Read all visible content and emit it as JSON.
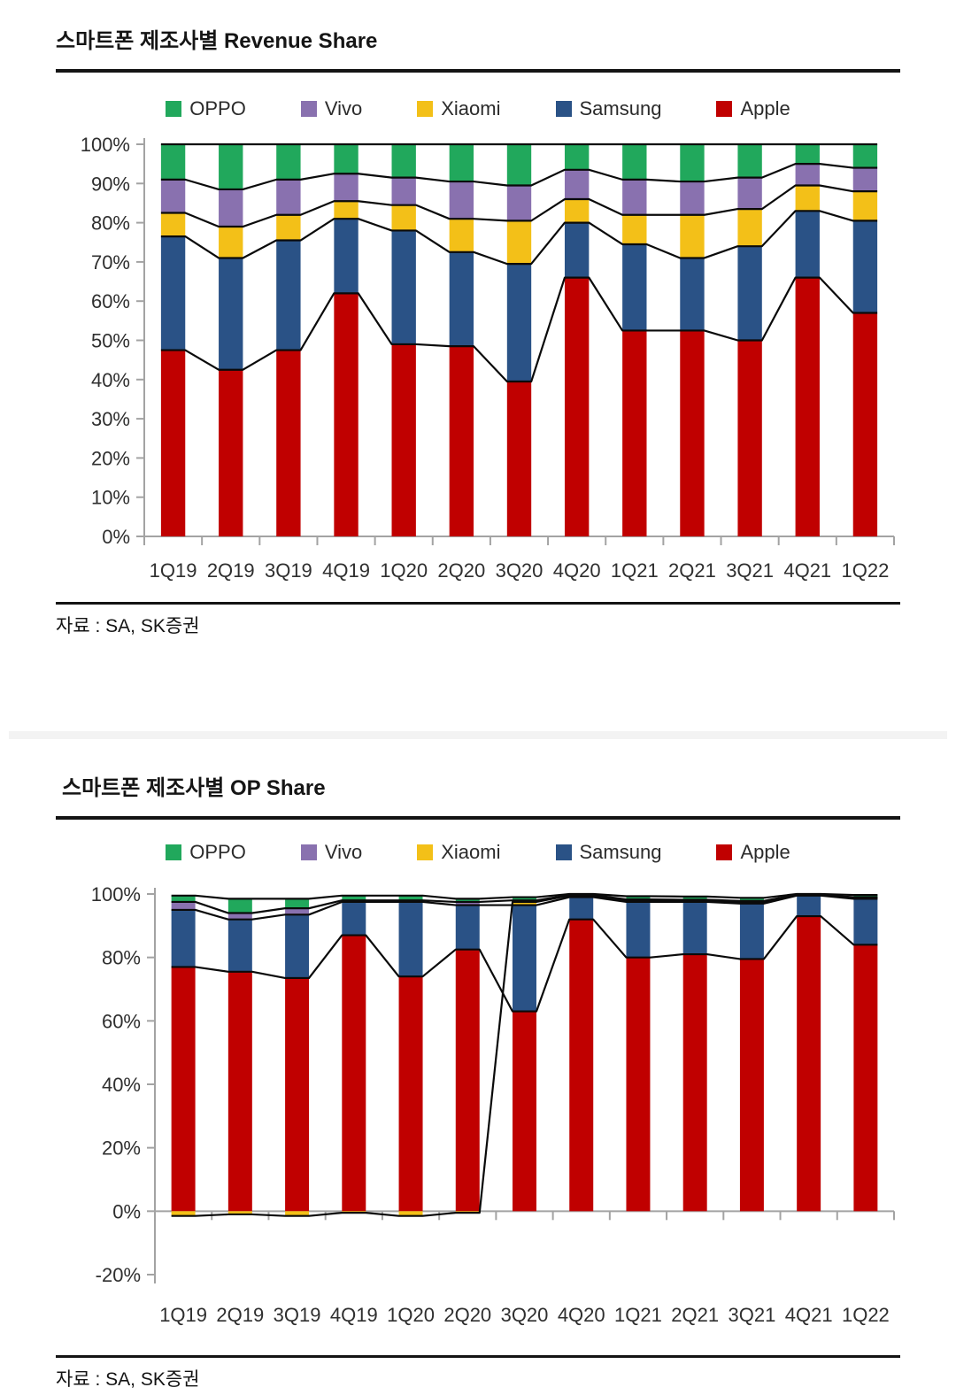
{
  "chart_data": [
    {
      "type": "bar",
      "stacked": true,
      "percent_stacked": true,
      "title": "스마트폰 제조사별 Revenue Share",
      "source": "자료 : SA, SK증권",
      "categories": [
        "1Q19",
        "2Q19",
        "3Q19",
        "4Q19",
        "1Q20",
        "2Q20",
        "3Q20",
        "4Q20",
        "1Q21",
        "2Q21",
        "3Q21",
        "4Q21",
        "1Q22"
      ],
      "stack_order": [
        "Apple",
        "Samsung",
        "Xiaomi",
        "Vivo",
        "OPPO"
      ],
      "legend": [
        {
          "name": "OPPO",
          "color": "#21A85C"
        },
        {
          "name": "Vivo",
          "color": "#8971AF"
        },
        {
          "name": "Xiaomi",
          "color": "#F3C018"
        },
        {
          "name": "Samsung",
          "color": "#2A5286"
        },
        {
          "name": "Apple",
          "color": "#C00000"
        }
      ],
      "series": [
        {
          "name": "Apple",
          "color": "#C00000",
          "values": [
            47.5,
            42.5,
            47.5,
            62,
            49,
            48.5,
            39.5,
            66,
            52.5,
            52.5,
            50,
            66,
            57
          ]
        },
        {
          "name": "Samsung",
          "color": "#2A5286",
          "values": [
            29,
            28.5,
            28,
            19,
            29,
            24,
            30,
            14,
            22,
            18.5,
            24,
            17,
            23.5
          ]
        },
        {
          "name": "Xiaomi",
          "color": "#F3C018",
          "values": [
            6,
            8,
            6.5,
            4.5,
            6.5,
            8.5,
            11,
            6,
            7.5,
            11,
            9.5,
            6.5,
            7.5
          ]
        },
        {
          "name": "Vivo",
          "color": "#8971AF",
          "values": [
            8.5,
            9.5,
            9,
            7,
            7,
            9.5,
            9,
            7.5,
            9,
            8.5,
            8,
            5.5,
            6
          ]
        },
        {
          "name": "OPPO",
          "color": "#21A85C",
          "values": [
            9,
            11.5,
            9,
            7.5,
            8.5,
            9.5,
            10.5,
            6.5,
            9,
            9.5,
            8.5,
            5,
            6
          ]
        }
      ],
      "ylim": [
        0,
        100
      ],
      "ytick_step": 10,
      "ytick_suffix": "%",
      "grid": false,
      "legend_position": "top",
      "series_connector_lines": true
    },
    {
      "type": "bar",
      "stacked": true,
      "percent_stacked": true,
      "title": "스마트폰 제조사별 OP Share",
      "source": "자료 : SA, SK증권",
      "categories": [
        "1Q19",
        "2Q19",
        "3Q19",
        "4Q19",
        "1Q20",
        "2Q20",
        "3Q20",
        "4Q20",
        "1Q21",
        "2Q21",
        "3Q21",
        "4Q21",
        "1Q22"
      ],
      "stack_order": [
        "Apple",
        "Samsung",
        "Xiaomi",
        "Vivo",
        "OPPO"
      ],
      "legend": [
        {
          "name": "OPPO",
          "color": "#21A85C"
        },
        {
          "name": "Vivo",
          "color": "#8971AF"
        },
        {
          "name": "Xiaomi",
          "color": "#F3C018"
        },
        {
          "name": "Samsung",
          "color": "#2A5286"
        },
        {
          "name": "Apple",
          "color": "#C00000"
        }
      ],
      "series": [
        {
          "name": "Apple",
          "color": "#C00000",
          "values": [
            77,
            75.5,
            73.5,
            87,
            74,
            82.5,
            63,
            92,
            80,
            81,
            79.5,
            93,
            84
          ]
        },
        {
          "name": "Samsung",
          "color": "#2A5286",
          "values": [
            18,
            16.5,
            20,
            10.5,
            23.5,
            14,
            33.5,
            7,
            17.5,
            16.5,
            17.5,
            6.5,
            14.5
          ]
        },
        {
          "name": "Xiaomi",
          "color": "#F3C018",
          "values": [
            -1.5,
            -1,
            -1.5,
            -0.5,
            -1.5,
            -0.5,
            1,
            0.5,
            0.5,
            0.4,
            0.5,
            0.2,
            0.3
          ]
        },
        {
          "name": "Vivo",
          "color": "#8971AF",
          "values": [
            2.5,
            2,
            2,
            0.5,
            0.5,
            1,
            0.5,
            0.2,
            0.3,
            0.3,
            0.3,
            0.1,
            0.2
          ]
        },
        {
          "name": "OPPO",
          "color": "#21A85C",
          "values": [
            2,
            4.5,
            3,
            1.5,
            1.5,
            1,
            1,
            0.3,
            1,
            1,
            1,
            0.2,
            0.7
          ]
        }
      ],
      "ylim": [
        -20,
        100
      ],
      "ytick_step": 20,
      "ytick_suffix": "%",
      "grid": false,
      "legend_position": "top",
      "series_connector_lines": true
    }
  ]
}
